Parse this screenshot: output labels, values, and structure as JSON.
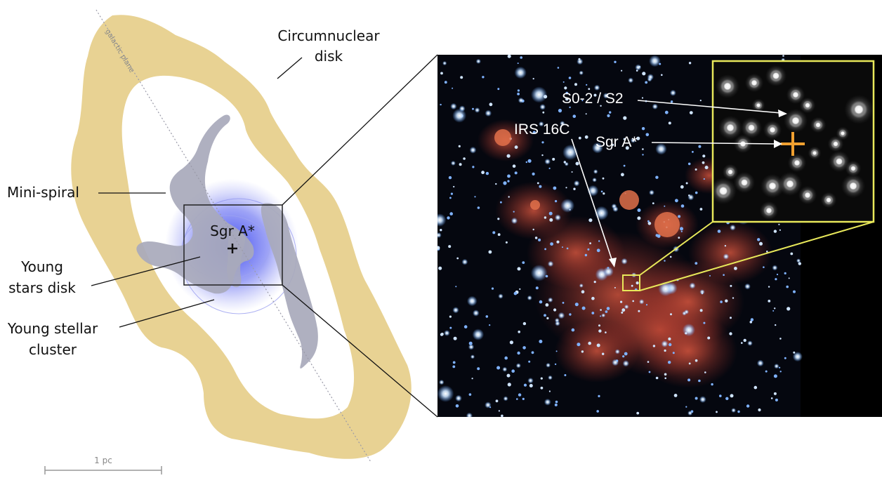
{
  "labels": {
    "circumnuclear_line1": "Circumnuclear",
    "circumnuclear_line2": "disk",
    "mini_spiral": "Mini-spiral",
    "young_stars_line1": "Young",
    "young_stars_line2": "stars disk",
    "young_cluster_line1": "Young stellar",
    "young_cluster_line2": "cluster",
    "sgra_center": "Sgr A*",
    "galactic_plane": "galactic plane",
    "scale": "1 pc"
  },
  "photo_labels": {
    "s02": "S0-2 / S2",
    "irs16c": "IRS 16C",
    "sgra": "Sgr A*"
  },
  "colors": {
    "disk_fill": "#e8d293",
    "mini_spiral": "#a8a9bb",
    "glow": "#4a55ee",
    "inset_border": "#e8e85a",
    "marker": "#f0a030"
  }
}
